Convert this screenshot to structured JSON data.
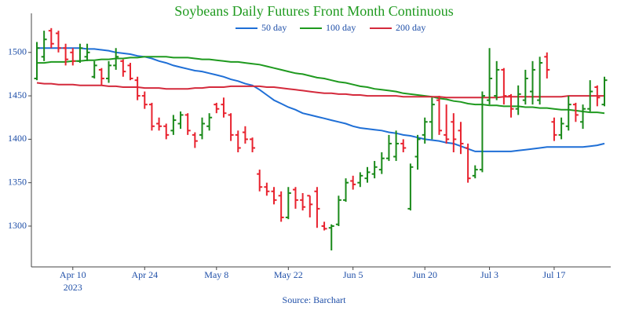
{
  "chart_data": {
    "type": "ohlc",
    "title": "Soybeans Daily Futures Front Month Continuous",
    "source": "Source: Barchart",
    "x": [
      "2023-03-31",
      "2023-04-03",
      "2023-04-04",
      "2023-04-05",
      "2023-04-06",
      "2023-04-10",
      "2023-04-11",
      "2023-04-12",
      "2023-04-13",
      "2023-04-14",
      "2023-04-17",
      "2023-04-18",
      "2023-04-19",
      "2023-04-20",
      "2023-04-21",
      "2023-04-24",
      "2023-04-25",
      "2023-04-26",
      "2023-04-27",
      "2023-04-28",
      "2023-05-01",
      "2023-05-02",
      "2023-05-03",
      "2023-05-04",
      "2023-05-05",
      "2023-05-08",
      "2023-05-09",
      "2023-05-10",
      "2023-05-11",
      "2023-05-12",
      "2023-05-15",
      "2023-05-16",
      "2023-05-17",
      "2023-05-18",
      "2023-05-19",
      "2023-05-22",
      "2023-05-23",
      "2023-05-24",
      "2023-05-25",
      "2023-05-26",
      "2023-05-30",
      "2023-05-31",
      "2023-06-01",
      "2023-06-02",
      "2023-06-05",
      "2023-06-06",
      "2023-06-07",
      "2023-06-08",
      "2023-06-09",
      "2023-06-12",
      "2023-06-13",
      "2023-06-14",
      "2023-06-15",
      "2023-06-16",
      "2023-06-20",
      "2023-06-21",
      "2023-06-22",
      "2023-06-23",
      "2023-06-26",
      "2023-06-27",
      "2023-06-28",
      "2023-06-29",
      "2023-06-30",
      "2023-07-03",
      "2023-07-05",
      "2023-07-06",
      "2023-07-07",
      "2023-07-10",
      "2023-07-11",
      "2023-07-12",
      "2023-07-13",
      "2023-07-14",
      "2023-07-17",
      "2023-07-18",
      "2023-07-19",
      "2023-07-20",
      "2023-07-21",
      "2023-07-24",
      "2023-07-25",
      "2023-07-26"
    ],
    "open": [
      1470,
      1495,
      1525,
      1522,
      1505,
      1500,
      1490,
      1495,
      1472,
      1480,
      1470,
      1485,
      1490,
      1485,
      1468,
      1450,
      1440,
      1418,
      1415,
      1410,
      1418,
      1428,
      1405,
      1405,
      1415,
      1440,
      1440,
      1428,
      1405,
      1408,
      1400,
      1360,
      1345,
      1340,
      1335,
      1310,
      1342,
      1330,
      1335,
      1340,
      1300,
      1298,
      1302,
      1330,
      1352,
      1350,
      1355,
      1360,
      1365,
      1378,
      1380,
      1395,
      1320,
      1380,
      1405,
      1420,
      1445,
      1405,
      1420,
      1410,
      1390,
      1358,
      1365,
      1445,
      1450,
      1480,
      1450,
      1435,
      1445,
      1455,
      1445,
      1495,
      1420,
      1405,
      1415,
      1440,
      1420,
      1435,
      1460,
      1440
    ],
    "high": [
      1512,
      1525,
      1528,
      1525,
      1510,
      1505,
      1510,
      1510,
      1490,
      1482,
      1490,
      1505,
      1492,
      1488,
      1472,
      1455,
      1442,
      1425,
      1418,
      1428,
      1432,
      1430,
      1408,
      1425,
      1430,
      1442,
      1448,
      1430,
      1410,
      1415,
      1402,
      1365,
      1350,
      1345,
      1340,
      1345,
      1345,
      1338,
      1335,
      1345,
      1305,
      1302,
      1335,
      1355,
      1358,
      1362,
      1368,
      1375,
      1385,
      1405,
      1410,
      1400,
      1372,
      1405,
      1425,
      1448,
      1450,
      1440,
      1430,
      1420,
      1395,
      1370,
      1455,
      1505,
      1490,
      1482,
      1452,
      1462,
      1480,
      1490,
      1495,
      1500,
      1425,
      1425,
      1450,
      1442,
      1440,
      1468,
      1462,
      1472
    ],
    "low": [
      1468,
      1490,
      1505,
      1500,
      1485,
      1485,
      1488,
      1490,
      1470,
      1462,
      1465,
      1480,
      1472,
      1468,
      1445,
      1435,
      1410,
      1410,
      1400,
      1405,
      1412,
      1405,
      1390,
      1400,
      1410,
      1430,
      1425,
      1398,
      1385,
      1395,
      1385,
      1340,
      1335,
      1325,
      1305,
      1308,
      1320,
      1318,
      1310,
      1298,
      1295,
      1272,
      1300,
      1328,
      1342,
      1345,
      1350,
      1355,
      1360,
      1375,
      1375,
      1385,
      1318,
      1365,
      1395,
      1400,
      1405,
      1395,
      1385,
      1383,
      1350,
      1355,
      1362,
      1440,
      1445,
      1440,
      1425,
      1428,
      1440,
      1440,
      1440,
      1470,
      1398,
      1400,
      1410,
      1420,
      1412,
      1432,
      1438,
      1438
    ],
    "close": [
      1505,
      1515,
      1510,
      1505,
      1492,
      1490,
      1505,
      1500,
      1485,
      1470,
      1485,
      1495,
      1478,
      1470,
      1450,
      1440,
      1415,
      1415,
      1405,
      1422,
      1428,
      1410,
      1398,
      1418,
      1425,
      1435,
      1430,
      1405,
      1390,
      1400,
      1390,
      1345,
      1340,
      1330,
      1310,
      1338,
      1330,
      1322,
      1325,
      1320,
      1297,
      1300,
      1330,
      1350,
      1348,
      1358,
      1362,
      1368,
      1378,
      1395,
      1395,
      1390,
      1368,
      1400,
      1420,
      1440,
      1410,
      1400,
      1400,
      1395,
      1355,
      1365,
      1450,
      1470,
      1480,
      1450,
      1435,
      1452,
      1470,
      1480,
      1488,
      1480,
      1405,
      1418,
      1440,
      1428,
      1435,
      1455,
      1448,
      1468
    ],
    "up_color": "#1a8a1a",
    "down_color": "#e8222e",
    "series": [
      {
        "name": "50 day",
        "color": "#1f6fd6",
        "values": [
          1505,
          1505,
          1505,
          1505,
          1505,
          1505,
          1505,
          1504,
          1504,
          1503,
          1502,
          1500,
          1499,
          1498,
          1496,
          1495,
          1493,
          1490,
          1488,
          1485,
          1483,
          1481,
          1479,
          1478,
          1476,
          1474,
          1472,
          1469,
          1467,
          1464,
          1462,
          1457,
          1451,
          1445,
          1441,
          1437,
          1434,
          1430,
          1428,
          1426,
          1424,
          1422,
          1420,
          1418,
          1415,
          1413,
          1412,
          1411,
          1410,
          1408,
          1407,
          1405,
          1404,
          1402,
          1400,
          1399,
          1398,
          1396,
          1395,
          1392,
          1389,
          1386,
          1386,
          1386,
          1386,
          1386,
          1386,
          1387,
          1388,
          1389,
          1390,
          1391,
          1391,
          1391,
          1391,
          1391,
          1391,
          1392,
          1393,
          1395
        ]
      },
      {
        "name": "100 day",
        "color": "#1f9a1f",
        "values": [
          1488,
          1488,
          1489,
          1489,
          1489,
          1490,
          1490,
          1491,
          1491,
          1492,
          1492,
          1493,
          1493,
          1494,
          1494,
          1495,
          1495,
          1495,
          1495,
          1494,
          1494,
          1494,
          1493,
          1492,
          1492,
          1491,
          1490,
          1489,
          1489,
          1488,
          1487,
          1486,
          1484,
          1482,
          1480,
          1478,
          1476,
          1475,
          1473,
          1471,
          1470,
          1468,
          1466,
          1465,
          1463,
          1461,
          1460,
          1458,
          1457,
          1456,
          1455,
          1453,
          1452,
          1451,
          1450,
          1449,
          1447,
          1446,
          1444,
          1443,
          1441,
          1440,
          1440,
          1439,
          1439,
          1438,
          1438,
          1438,
          1437,
          1437,
          1436,
          1436,
          1435,
          1434,
          1434,
          1433,
          1432,
          1431,
          1431,
          1430
        ]
      },
      {
        "name": "200 day",
        "color": "#d42a3c",
        "values": [
          1465,
          1464,
          1464,
          1463,
          1463,
          1463,
          1462,
          1462,
          1462,
          1462,
          1461,
          1461,
          1460,
          1460,
          1460,
          1459,
          1459,
          1459,
          1458,
          1458,
          1458,
          1458,
          1459,
          1459,
          1460,
          1460,
          1460,
          1461,
          1461,
          1461,
          1461,
          1461,
          1460,
          1460,
          1459,
          1458,
          1457,
          1456,
          1455,
          1454,
          1453,
          1453,
          1452,
          1452,
          1451,
          1451,
          1450,
          1450,
          1450,
          1450,
          1450,
          1449,
          1449,
          1449,
          1449,
          1449,
          1449,
          1448,
          1448,
          1448,
          1448,
          1448,
          1448,
          1448,
          1448,
          1449,
          1449,
          1449,
          1449,
          1449,
          1449,
          1449,
          1449,
          1449,
          1450,
          1450,
          1450,
          1450,
          1450,
          1450
        ]
      }
    ],
    "ylim": [
      1253,
      1545
    ],
    "yticks": [
      1300,
      1350,
      1400,
      1450,
      1500
    ],
    "xticks": [
      {
        "value": "2023-04-10",
        "label": "Apr 10"
      },
      {
        "value": "2023-04-24",
        "label": "Apr 24"
      },
      {
        "value": "2023-05-08",
        "label": "May 8"
      },
      {
        "value": "2023-05-22",
        "label": "May 22"
      },
      {
        "value": "2023-06-05",
        "label": "Jun 5"
      },
      {
        "value": "2023-06-20",
        "label": "Jun 20"
      },
      {
        "value": "2023-07-03",
        "label": "Jul 3"
      },
      {
        "value": "2023-07-17",
        "label": "Jul 17"
      }
    ],
    "x_year_label": "2023"
  }
}
